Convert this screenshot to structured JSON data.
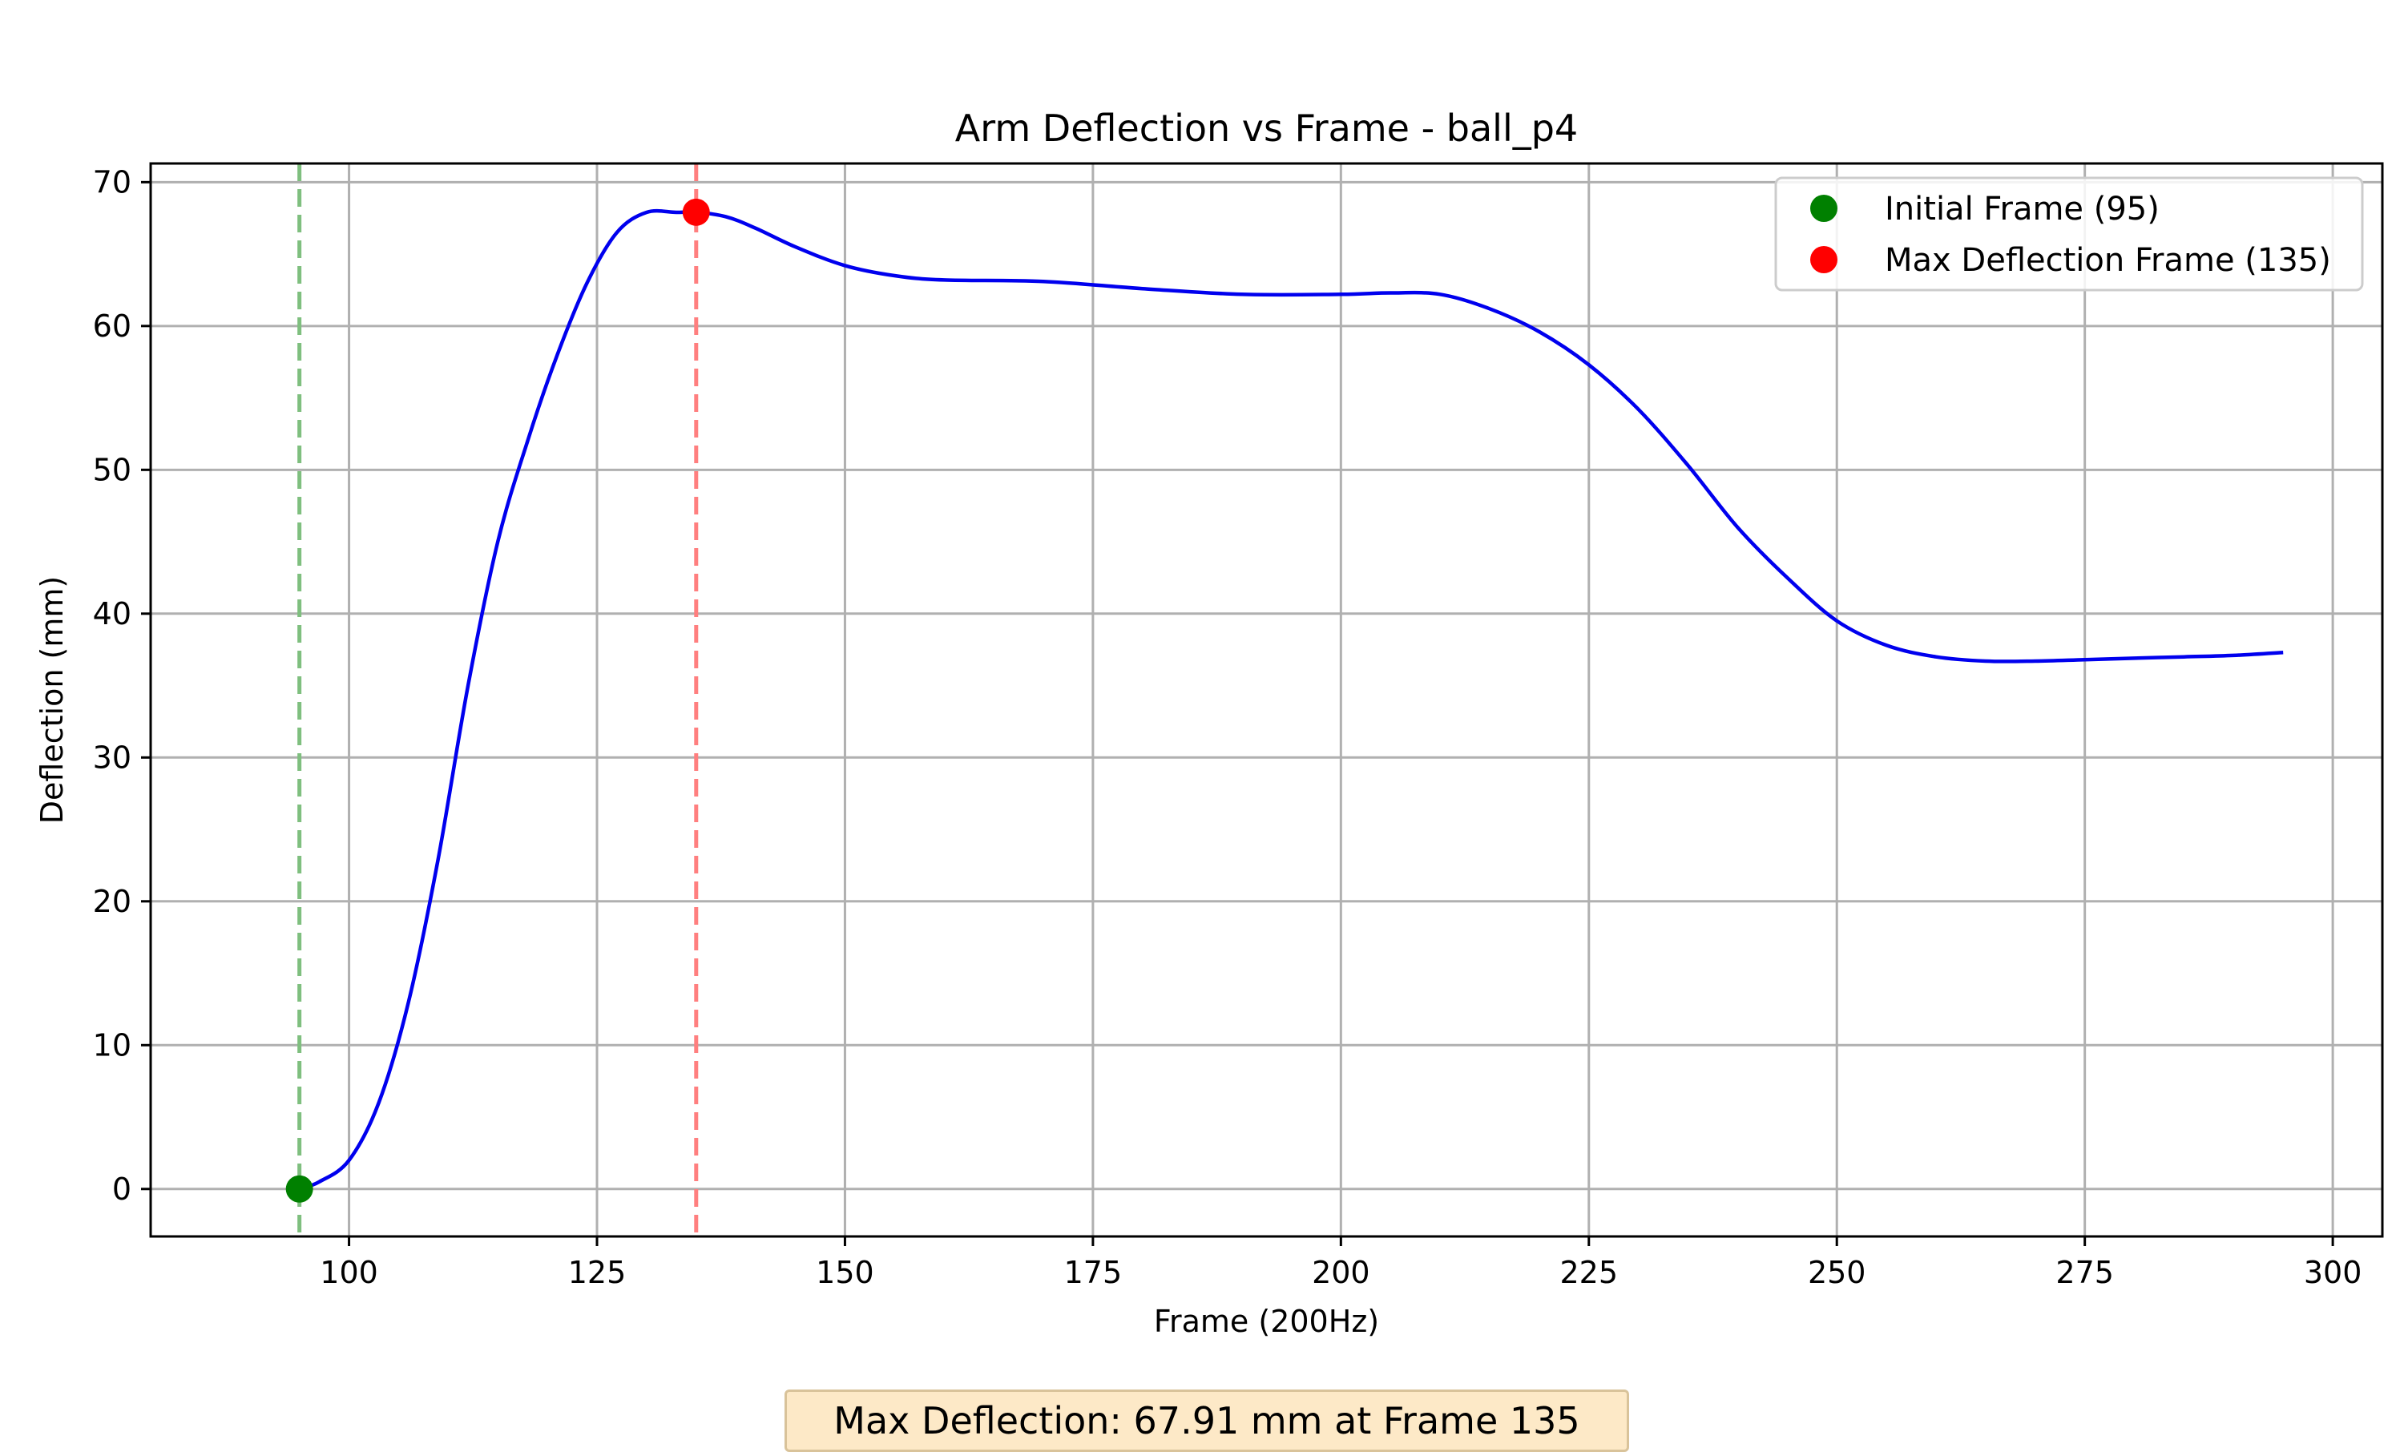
{
  "chart_data": {
    "type": "line",
    "title": "Arm Deflection vs Frame - ball_p4",
    "xlabel": "Frame (200Hz)",
    "ylabel": "Deflection (mm)",
    "xlim": [
      80,
      305
    ],
    "ylim": [
      -3.3,
      71.3
    ],
    "xticks": [
      100,
      125,
      150,
      175,
      200,
      225,
      250,
      275,
      300
    ],
    "yticks": [
      0,
      10,
      20,
      30,
      40,
      50,
      60,
      70
    ],
    "grid": true,
    "legend_position": "top-right",
    "series": [
      {
        "color": "#0000ee",
        "x": [
          95,
          97,
          100,
          103,
          106,
          109,
          112,
          115,
          118,
          121,
          124,
          127,
          130,
          133,
          135,
          138,
          141,
          145,
          150,
          155,
          160,
          170,
          180,
          190,
          200,
          205,
          210,
          215,
          220,
          225,
          230,
          235,
          240,
          245,
          250,
          255,
          260,
          265,
          270,
          275,
          280,
          285,
          290,
          295
        ],
        "y": [
          0,
          0.5,
          2,
          6,
          13,
          23,
          35,
          45,
          52,
          58,
          63,
          66.5,
          67.9,
          67.9,
          67.91,
          67.6,
          66.8,
          65.5,
          64.2,
          63.5,
          63.2,
          63.1,
          62.6,
          62.2,
          62.2,
          62.3,
          62.2,
          61.2,
          59.6,
          57.3,
          54.2,
          50.3,
          46.0,
          42.5,
          39.5,
          37.8,
          37.0,
          36.7,
          36.7,
          36.8,
          36.9,
          37.0,
          37.1,
          37.3
        ]
      }
    ],
    "vlines": [
      {
        "x": 95,
        "color": "#7fbf7f"
      },
      {
        "x": 135,
        "color": "#ff7f7f"
      }
    ],
    "markers": [
      {
        "name": "Initial Frame (95)",
        "x": 95,
        "y": 0,
        "color": "#008000"
      },
      {
        "name": "Max Deflection Frame (135)",
        "x": 135,
        "y": 67.91,
        "color": "#ff0000"
      }
    ],
    "annotation": "Max Deflection: 67.91 mm at Frame 135"
  }
}
